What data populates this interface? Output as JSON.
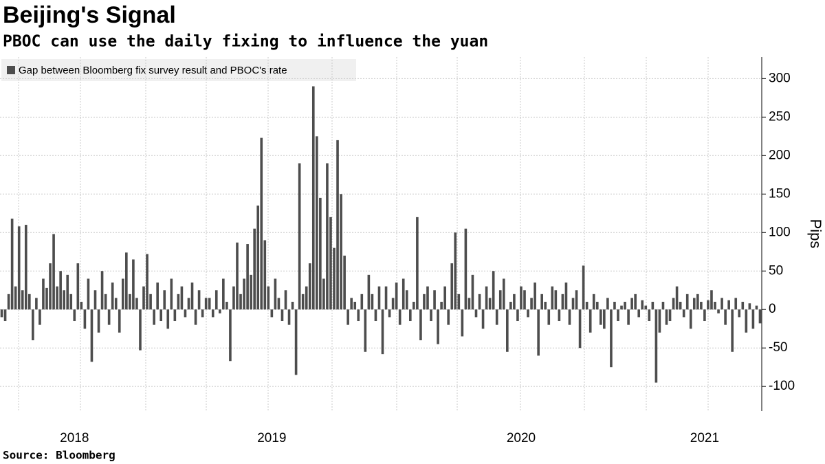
{
  "chart_data": {
    "type": "bar",
    "title": "Beijing's Signal",
    "subtitle": "PBOC can use the daily fixing to influence the yuan",
    "source": "Source:  Bloomberg",
    "y_label": "Pips",
    "ylim": [
      -132,
      328
    ],
    "yticks": [
      -100,
      -50,
      0,
      50,
      100,
      150,
      200,
      250,
      300
    ],
    "grid": true,
    "legend": "top-left",
    "categories": [
      null,
      null,
      null,
      null,
      null,
      null,
      null,
      null,
      null,
      null,
      null,
      null,
      null,
      null,
      null,
      null,
      null,
      null,
      null,
      null,
      null,
      "2018",
      null,
      null,
      null,
      null,
      null,
      null,
      null,
      null,
      null,
      null,
      null,
      null,
      null,
      null,
      null,
      null,
      null,
      null,
      null,
      null,
      null,
      null,
      null,
      null,
      null,
      null,
      null,
      null,
      null,
      null,
      null,
      null,
      null,
      null,
      null,
      null,
      null,
      null,
      null,
      null,
      null,
      null,
      null,
      null,
      null,
      null,
      null,
      null,
      null,
      null,
      null,
      null,
      null,
      null,
      null,
      null,
      "2019",
      null,
      null,
      null,
      null,
      null,
      null,
      null,
      null,
      null,
      null,
      null,
      null,
      null,
      null,
      null,
      null,
      null,
      null,
      null,
      null,
      null,
      null,
      null,
      null,
      null,
      null,
      null,
      null,
      null,
      null,
      null,
      null,
      null,
      null,
      null,
      null,
      null,
      null,
      null,
      null,
      null,
      null,
      null,
      null,
      null,
      null,
      null,
      null,
      null,
      null,
      null,
      null,
      null,
      null,
      null,
      null,
      null,
      null,
      null,
      null,
      null,
      null,
      null,
      null,
      null,
      null,
      null,
      null,
      null,
      null,
      null,
      "2020",
      null,
      null,
      null,
      null,
      null,
      null,
      null,
      null,
      null,
      null,
      null,
      null,
      null,
      null,
      null,
      null,
      null,
      null,
      null,
      null,
      null,
      null,
      null,
      null,
      null,
      null,
      null,
      null,
      null,
      null,
      null,
      null,
      null,
      null,
      null,
      null,
      null,
      null,
      null,
      null,
      null,
      null,
      null,
      null,
      null,
      null,
      null,
      null,
      null,
      null,
      null,
      null,
      "2021",
      null,
      null,
      null,
      null,
      null,
      null,
      null,
      null,
      null,
      null,
      null,
      null,
      null,
      null,
      null,
      null
    ],
    "series": [
      {
        "name": "Gap between Bloomberg fix survey result and PBOC's rate",
        "color": "#4d4d4d",
        "values": [
          -10,
          -15,
          20,
          118,
          30,
          108,
          25,
          110,
          20,
          -40,
          15,
          -20,
          40,
          28,
          60,
          98,
          30,
          50,
          25,
          45,
          20,
          -15,
          60,
          10,
          -25,
          40,
          -68,
          25,
          -30,
          50,
          20,
          -20,
          35,
          15,
          -30,
          40,
          74,
          20,
          65,
          15,
          -53,
          30,
          72,
          20,
          -20,
          35,
          -15,
          25,
          -25,
          40,
          -15,
          20,
          30,
          -10,
          15,
          35,
          -20,
          25,
          -10,
          15,
          15,
          -10,
          25,
          -5,
          40,
          10,
          -67,
          30,
          87,
          20,
          40,
          85,
          45,
          105,
          135,
          223,
          90,
          30,
          -10,
          40,
          15,
          -15,
          25,
          -20,
          10,
          -85,
          190,
          20,
          30,
          60,
          290,
          225,
          145,
          40,
          190,
          120,
          80,
          220,
          150,
          70,
          -20,
          15,
          10,
          -15,
          20,
          -55,
          45,
          20,
          -15,
          30,
          -58,
          30,
          -10,
          15,
          35,
          -20,
          40,
          25,
          -15,
          10,
          120,
          -40,
          20,
          30,
          -15,
          25,
          -45,
          10,
          30,
          -20,
          60,
          100,
          20,
          -35,
          105,
          15,
          45,
          -10,
          20,
          -25,
          30,
          15,
          50,
          -20,
          25,
          40,
          -55,
          10,
          20,
          -15,
          30,
          25,
          -10,
          15,
          35,
          -60,
          20,
          10,
          -20,
          30,
          25,
          -15,
          20,
          35,
          -20,
          15,
          25,
          -50,
          57,
          10,
          -30,
          20,
          10,
          -20,
          -25,
          15,
          -75,
          10,
          -15,
          5,
          10,
          -20,
          15,
          20,
          -10,
          12,
          5,
          -15,
          10,
          -95,
          -30,
          10,
          -20,
          -15,
          15,
          30,
          10,
          -10,
          20,
          -25,
          15,
          20,
          10,
          -15,
          12,
          25,
          10,
          -5,
          15,
          -20,
          12,
          -55,
          15,
          -10,
          10,
          -30,
          8,
          -25,
          5,
          -18
        ]
      }
    ]
  }
}
